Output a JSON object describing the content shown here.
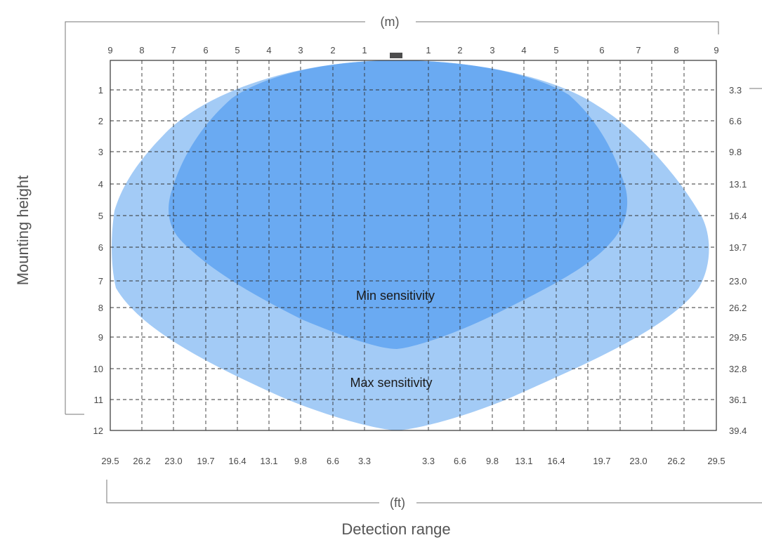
{
  "diagram": {
    "meter_unit": "(m)",
    "feet_unit": "(ft)",
    "horizontal_axis_title": "Detection range",
    "vertical_axis_title": "Mounting height",
    "top_tick_labels": [
      "9",
      "8",
      "7",
      "6",
      "5",
      "4",
      "3",
      "2",
      "1",
      "1",
      "2",
      "3",
      "4",
      "5",
      "6",
      "7",
      "8",
      "9"
    ],
    "bottom_tick_labels": [
      "29.5",
      "26.2",
      "23.0",
      "19.7",
      "16.4",
      "13.1",
      "9.8",
      "6.6",
      "3.3",
      "3.3",
      "6.6",
      "9.8",
      "13.1",
      "16.4",
      "19.7",
      "23.0",
      "26.2",
      "29.5"
    ],
    "left_tick_labels": [
      "1",
      "2",
      "3",
      "4",
      "5",
      "6",
      "7",
      "8",
      "9",
      "10",
      "11",
      "12"
    ],
    "right_tick_labels": [
      "3.3",
      "6.6",
      "9.8",
      "13.1",
      "16.4",
      "19.7",
      "23.0",
      "26.2",
      "29.5",
      "32.8",
      "36.1",
      "39.4"
    ],
    "zones": {
      "max_label": "Max sensitivity",
      "min_label": "Min sensitivity"
    },
    "colors": {
      "max_zone": "#a3cbf6",
      "min_zone": "#6aaaf2",
      "grid": "#333333",
      "sensor": "#4d4d4d"
    }
  }
}
